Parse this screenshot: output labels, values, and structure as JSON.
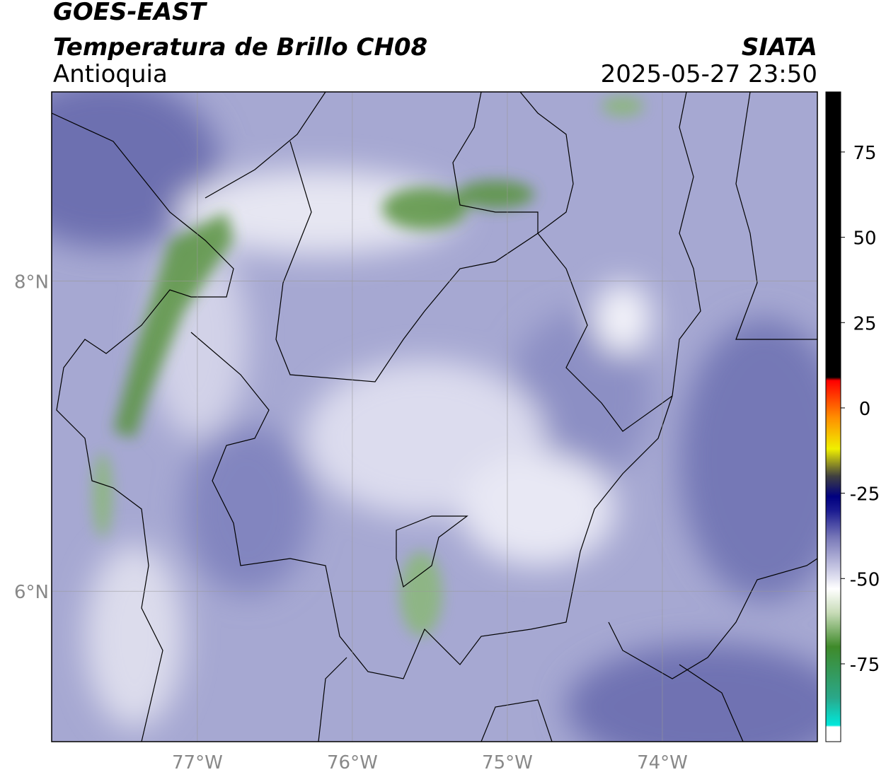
{
  "header": {
    "satellite": "GOES-EAST",
    "product": "Temperatura de Brillo CH08",
    "region": "Antioquia",
    "source": "SIATA",
    "datetime": "2025-05-27 23:50"
  },
  "map": {
    "lonlim": [
      -77.94,
      -73.0
    ],
    "latlim": [
      5.03,
      9.22
    ],
    "lonticks": [
      {
        "value": -77,
        "label": "77°W"
      },
      {
        "value": -76,
        "label": "76°W"
      },
      {
        "value": -75,
        "label": "75°W"
      },
      {
        "value": -74,
        "label": "74°W"
      }
    ],
    "latticks": [
      {
        "value": 8,
        "label": "8°N"
      },
      {
        "value": 6,
        "label": "6°N"
      }
    ],
    "grid": true
  },
  "colorbar": {
    "lim": [
      -97.8,
      92.6
    ],
    "ticks": [
      75,
      50,
      25,
      0,
      -25,
      -50,
      -75
    ],
    "stops": [
      {
        "value": -97.8,
        "color": "#ffffff"
      },
      {
        "value": -93.5,
        "color": "#ffffff"
      },
      {
        "value": -93,
        "color": "#00e8dc"
      },
      {
        "value": -85,
        "color": "#2aa88a"
      },
      {
        "value": -70,
        "color": "#3f8a2a"
      },
      {
        "value": -60,
        "color": "#c8dcb8"
      },
      {
        "value": -53,
        "color": "#ffffff"
      },
      {
        "value": -48,
        "color": "#d0d0e8"
      },
      {
        "value": -38,
        "color": "#7878b8"
      },
      {
        "value": -30,
        "color": "#1a1a90"
      },
      {
        "value": -26,
        "color": "#000080"
      },
      {
        "value": -20,
        "color": "#404040"
      },
      {
        "value": -12,
        "color": "#f0f000"
      },
      {
        "value": -3,
        "color": "#ff9000"
      },
      {
        "value": 8,
        "color": "#ff0000"
      },
      {
        "value": 9,
        "color": "#000000"
      },
      {
        "value": 92.6,
        "color": "#000000"
      }
    ]
  }
}
